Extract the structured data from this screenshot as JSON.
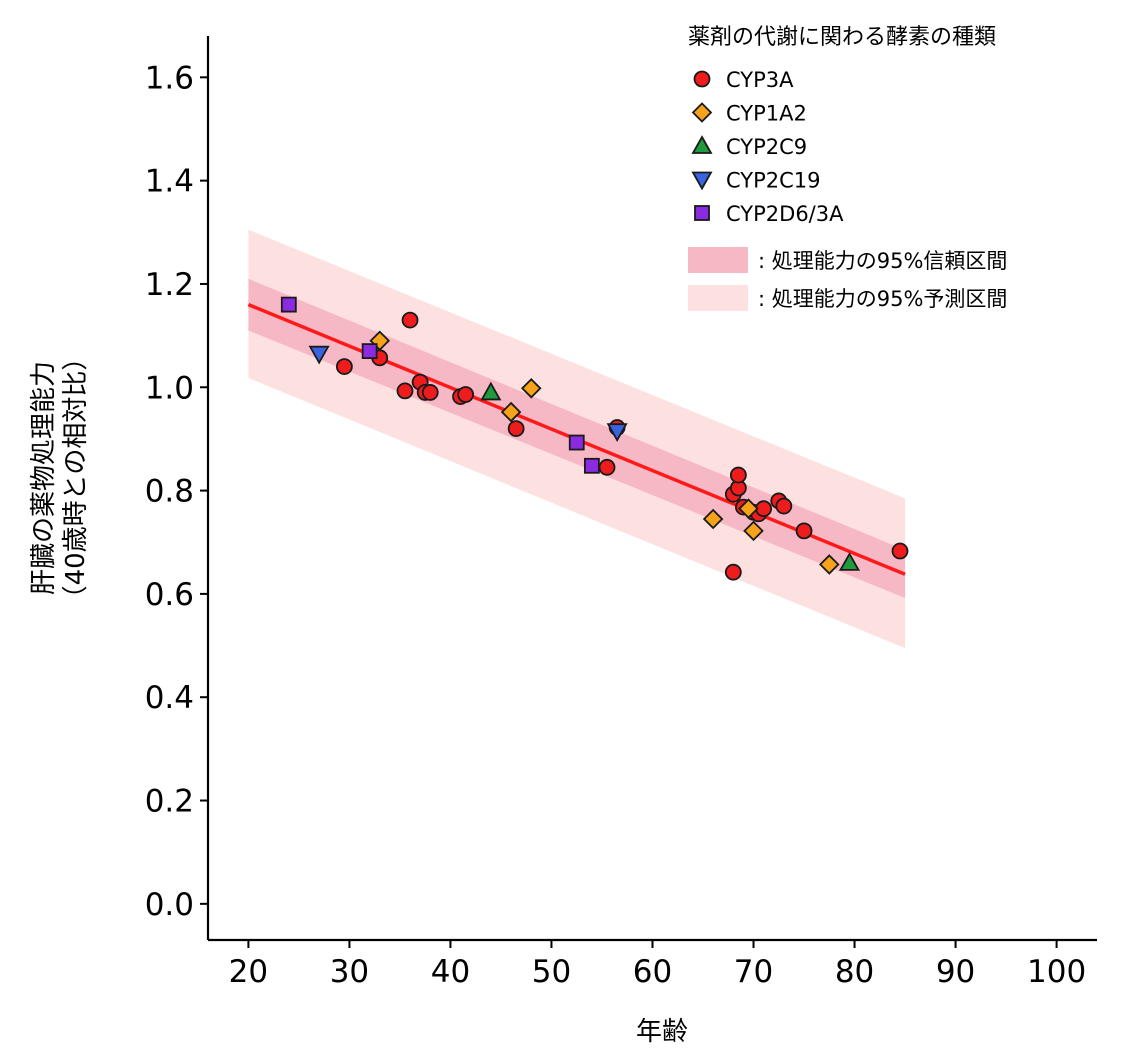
{
  "chart_data": {
    "type": "scatter",
    "xlabel": "年齢",
    "ylabel_line1": "肝臓の薬物処理能力",
    "ylabel_line2": "（40歳時との相対比）",
    "xlim": [
      16,
      104
    ],
    "ylim": [
      -0.07,
      1.68
    ],
    "x_ticks": [
      20,
      30,
      40,
      50,
      60,
      70,
      80,
      90,
      100
    ],
    "y_ticks": [
      0.0,
      0.2,
      0.4,
      0.6,
      0.8,
      1.0,
      1.2,
      1.4,
      1.6
    ],
    "y_tick_labels": [
      "0.0",
      "0.2",
      "0.4",
      "0.6",
      "0.8",
      "1.0",
      "1.2",
      "1.4",
      "1.6"
    ],
    "x_tick_labels": [
      "20",
      "30",
      "40",
      "50",
      "60",
      "70",
      "80",
      "90",
      "100"
    ],
    "legend_title": "薬剤の代謝に関わる酵素の種類",
    "series": [
      {
        "name": "CYP3A",
        "marker": "circle",
        "color": "#ee1c1c",
        "points": [
          [
            29.5,
            1.04
          ],
          [
            33,
            1.057
          ],
          [
            36,
            1.13
          ],
          [
            35.5,
            0.993
          ],
          [
            37,
            1.01
          ],
          [
            37.5,
            0.99
          ],
          [
            38,
            0.99
          ],
          [
            41,
            0.982
          ],
          [
            41.5,
            0.986
          ],
          [
            46.5,
            0.92
          ],
          [
            55.5,
            0.845
          ],
          [
            56.5,
            0.922
          ],
          [
            68,
            0.642
          ],
          [
            68,
            0.793
          ],
          [
            68.5,
            0.805
          ],
          [
            68.5,
            0.83
          ],
          [
            69,
            0.768
          ],
          [
            70,
            0.758
          ],
          [
            70.5,
            0.755
          ],
          [
            71,
            0.765
          ],
          [
            72.5,
            0.78
          ],
          [
            73,
            0.77
          ],
          [
            75,
            0.722
          ],
          [
            84.5,
            0.683
          ]
        ]
      },
      {
        "name": "CYP1A2",
        "marker": "diamond",
        "color": "#f6a21a",
        "points": [
          [
            33,
            1.09
          ],
          [
            46,
            0.952
          ],
          [
            48,
            0.998
          ],
          [
            66,
            0.745
          ],
          [
            69.5,
            0.765
          ],
          [
            70,
            0.722
          ],
          [
            77.5,
            0.657
          ]
        ]
      },
      {
        "name": "CYP2C9",
        "marker": "triangle-up",
        "color": "#1f9a3c",
        "points": [
          [
            44,
            0.99
          ],
          [
            79.5,
            0.66
          ]
        ]
      },
      {
        "name": "CYP2C19",
        "marker": "triangle-down",
        "color": "#3a63e0",
        "points": [
          [
            27,
            1.065
          ],
          [
            56.5,
            0.915
          ]
        ]
      },
      {
        "name": "CYP2D6/3A",
        "marker": "square",
        "color": "#8a2be2",
        "points": [
          [
            24,
            1.16
          ],
          [
            32,
            1.07
          ],
          [
            52.5,
            0.893
          ],
          [
            54,
            0.848
          ]
        ]
      }
    ],
    "fit_line": {
      "color": "#ff1a1a",
      "x": [
        20,
        85
      ],
      "y": [
        1.16,
        0.638
      ]
    },
    "confidence_band": {
      "label": "処理能力の95%信頼区間",
      "color": "#f7b8c6",
      "x": [
        20,
        85
      ],
      "lower": [
        1.11,
        0.592
      ],
      "upper": [
        1.21,
        0.685
      ]
    },
    "prediction_band": {
      "label": "処理能力の95%予測区間",
      "color": "#fde1e1",
      "x": [
        20,
        85
      ],
      "lower": [
        1.018,
        0.495
      ],
      "upper": [
        1.305,
        0.785
      ]
    },
    "legend_band_prefix": ": ",
    "legend_position": "top-right",
    "grid": false
  }
}
